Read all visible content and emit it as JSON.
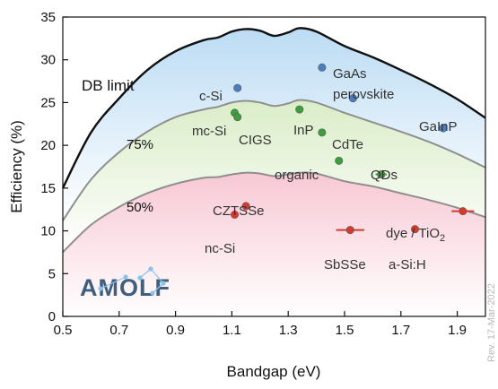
{
  "chart_data": {
    "type": "scatter",
    "xlabel": "Bandgap (eV)",
    "ylabel": "Efficiency (%)",
    "xlim": [
      0.5,
      2.0
    ],
    "ylim": [
      0,
      35
    ],
    "xticks": [
      0.5,
      0.7,
      0.9,
      1.1,
      1.3,
      1.5,
      1.7,
      1.9
    ],
    "yticks": [
      0,
      5,
      10,
      15,
      20,
      25,
      30,
      35
    ],
    "grid": false,
    "curves": [
      {
        "label": "DB limit",
        "fill": "#bcdcf4",
        "stroke": "#111111",
        "x": [
          0.5,
          0.6,
          0.7,
          0.8,
          0.9,
          1.0,
          1.05,
          1.1,
          1.15,
          1.2,
          1.25,
          1.3,
          1.34,
          1.4,
          1.5,
          1.6,
          1.7,
          1.8,
          1.9,
          2.0
        ],
        "y": [
          15.0,
          21.5,
          25.5,
          28.8,
          31.0,
          32.3,
          32.6,
          33.3,
          33.6,
          33.4,
          32.8,
          33.2,
          33.7,
          33.3,
          31.6,
          30.3,
          28.8,
          27.2,
          25.4,
          23.2
        ]
      },
      {
        "label": "75%",
        "fill": "#daedc8",
        "stroke": "#8f8f8f",
        "x": [
          0.5,
          0.6,
          0.7,
          0.8,
          0.9,
          1.0,
          1.05,
          1.1,
          1.15,
          1.2,
          1.25,
          1.3,
          1.34,
          1.4,
          1.5,
          1.6,
          1.7,
          1.8,
          1.9,
          2.0
        ],
        "y": [
          11.2,
          16.0,
          19.2,
          21.6,
          23.3,
          24.2,
          24.5,
          25.0,
          25.2,
          25.0,
          24.6,
          24.9,
          25.3,
          25.0,
          23.8,
          22.7,
          21.6,
          20.4,
          19.0,
          17.4
        ]
      },
      {
        "label": "50%",
        "fill": "#f8c8d4",
        "stroke": "#8f8f8f",
        "x": [
          0.5,
          0.6,
          0.7,
          0.8,
          0.9,
          1.0,
          1.05,
          1.1,
          1.15,
          1.2,
          1.25,
          1.3,
          1.34,
          1.4,
          1.5,
          1.6,
          1.7,
          1.8,
          1.9,
          2.0
        ],
        "y": [
          7.5,
          10.7,
          12.8,
          14.4,
          15.5,
          16.2,
          16.3,
          16.6,
          16.8,
          16.7,
          16.4,
          16.6,
          16.8,
          16.7,
          15.8,
          15.2,
          14.4,
          13.6,
          12.7,
          11.6
        ]
      }
    ],
    "points": [
      {
        "label": "c-Si",
        "x": 1.12,
        "y": 26.7,
        "color": "#4a7ec0",
        "xerr": 0
      },
      {
        "label": "GaAs",
        "x": 1.42,
        "y": 29.1,
        "color": "#4a7ec0",
        "xerr": 0
      },
      {
        "label": "perovskite",
        "x": 1.53,
        "y": 25.5,
        "color": "#4a7ec0",
        "xerr": 0
      },
      {
        "label": "GaInP",
        "x": 1.85,
        "y": 22.0,
        "color": "#4a7ec0",
        "xerr": 0
      },
      {
        "label": "mc-Si",
        "x": 1.11,
        "y": 23.8,
        "color": "#3e9e3e",
        "xerr": 0
      },
      {
        "label": "CIGS",
        "x": 1.12,
        "y": 23.3,
        "color": "#3e9e3e",
        "xerr": 0
      },
      {
        "label": "InP",
        "x": 1.34,
        "y": 24.2,
        "color": "#3e9e3e",
        "xerr": 0
      },
      {
        "label": "CdTe",
        "x": 1.42,
        "y": 21.5,
        "color": "#3e9e3e",
        "xerr": 0
      },
      {
        "label": "organic",
        "x": 1.48,
        "y": 18.2,
        "color": "#3e9e3e",
        "xerr": 0
      },
      {
        "label": "QDs",
        "x": 1.63,
        "y": 16.6,
        "color": "#3e9e3e",
        "xerr": 0.02
      },
      {
        "label": "CZTSSe",
        "x": 1.15,
        "y": 12.9,
        "color": "#d6392e",
        "xerr": 0
      },
      {
        "label": "nc-Si",
        "x": 1.11,
        "y": 11.9,
        "color": "#d6392e",
        "xerr": 0
      },
      {
        "label": "SbSSe",
        "x": 1.52,
        "y": 10.1,
        "color": "#d6392e",
        "xerr": 0.05
      },
      {
        "label": "a-Si:H",
        "x": 1.75,
        "y": 10.2,
        "color": "#d6392e",
        "xerr": 0
      },
      {
        "label": "dye / TiO",
        "x": 1.92,
        "y": 12.3,
        "color": "#d6392e",
        "xerr": 0.04
      }
    ]
  },
  "logo": {
    "text": "AMOLF"
  },
  "revision": "Rev. 17-Mar-2022"
}
